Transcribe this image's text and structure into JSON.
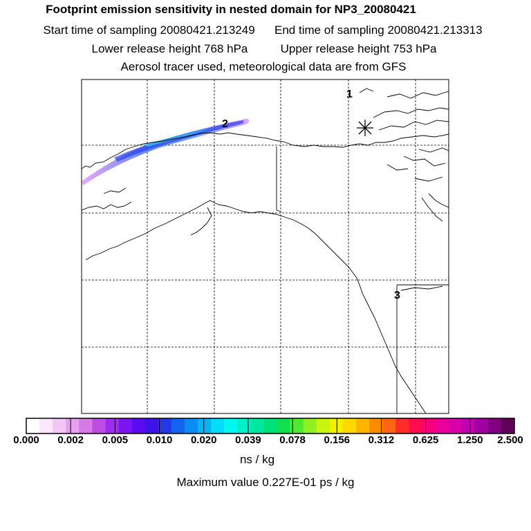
{
  "header": {
    "title": "Footprint emission sensitivity in nested domain for NP3_20080421",
    "start_label": "Start time of sampling 20080421.213249",
    "end_label": "End time of sampling 20080421.213313",
    "lower_label": "Lower release height  768 hPa",
    "upper_label": "Upper release height  753 hPa",
    "tracer_line": "Aerosol tracer used, meteorological data are from GFS"
  },
  "map": {
    "markers": {
      "label_1": "1",
      "label_2": "2",
      "label_3": "3"
    },
    "release_marker_icon": "asterisk-icon"
  },
  "colorbar": {
    "tick_labels": [
      "0.000",
      "0.002",
      "0.005",
      "0.010",
      "0.020",
      "0.039",
      "0.078",
      "0.156",
      "0.312",
      "0.625",
      "1.250",
      "2.500"
    ],
    "colors": [
      "#ffffff",
      "#fbe6fb",
      "#f2c6f4",
      "#e6a0ee",
      "#d77ae8",
      "#c04ce6",
      "#a02cf0",
      "#7a14f0",
      "#5a0cf0",
      "#3a14e8",
      "#2438e8",
      "#1464f0",
      "#0a8cf4",
      "#08b4f4",
      "#04dcf8",
      "#00f8f0",
      "#00f0c8",
      "#00e8a0",
      "#00e078",
      "#10e050",
      "#50e830",
      "#90f020",
      "#c8f410",
      "#f0f000",
      "#ffd800",
      "#ffb400",
      "#ff8c00",
      "#ff6414",
      "#ff2c28",
      "#ff0c50",
      "#f8007a",
      "#ec009c",
      "#d800a8",
      "#c000b0",
      "#a000a0",
      "#800080",
      "#600058"
    ],
    "units": "ns / kg",
    "max_value_text": "Maximum value  0.227E-01 ps / kg"
  }
}
